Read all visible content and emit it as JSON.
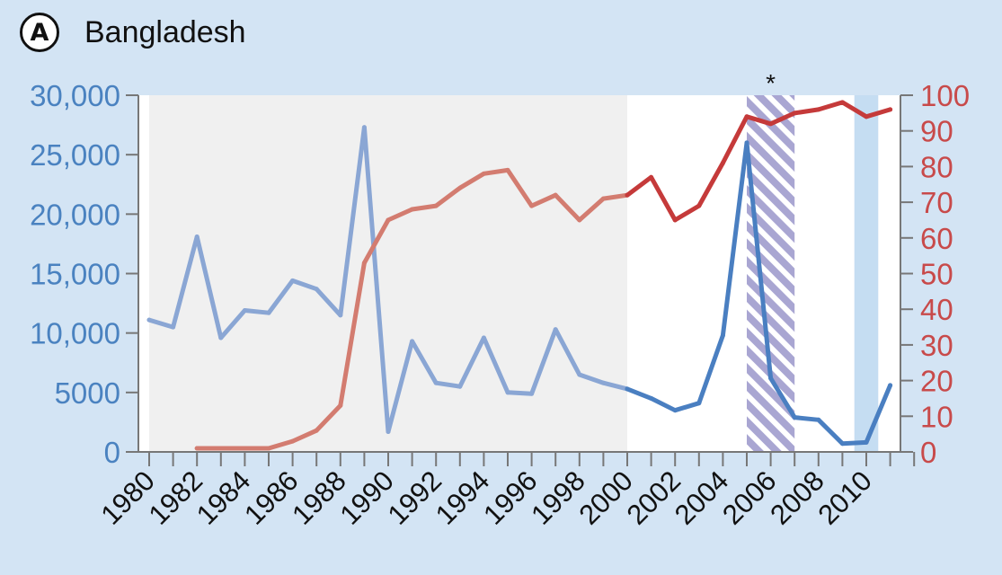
{
  "panel": {
    "badge": "A",
    "title": "Bangladesh"
  },
  "chart_data": {
    "type": "line",
    "title": "Bangladesh",
    "xlabel": "",
    "x_range": [
      1980,
      2011
    ],
    "x_tick_labels": [
      "1980",
      "1982",
      "1984",
      "1986",
      "1988",
      "1990",
      "1992",
      "1994",
      "1996",
      "1998",
      "2000",
      "2002",
      "2004",
      "2006",
      "2008",
      "2010"
    ],
    "left_axis": {
      "range": [
        0,
        30000
      ],
      "tick_labels": [
        "0",
        "5000",
        "10,000",
        "15,000",
        "20,000",
        "25,000",
        "30,000"
      ],
      "color": "#4a82c0"
    },
    "right_axis": {
      "range": [
        0,
        100
      ],
      "tick_labels": [
        "0",
        "10",
        "20",
        "30",
        "40",
        "50",
        "60",
        "70",
        "80",
        "90",
        "100"
      ],
      "color": "#c84a4a"
    },
    "shaded_regions": [
      {
        "kind": "gray-background",
        "from": 1980,
        "to": 2000,
        "color": "#f0f0f0"
      },
      {
        "kind": "hatched",
        "from": 2005,
        "to": 2007,
        "color": "#a9a6d2",
        "annotation": "*"
      },
      {
        "kind": "solid",
        "from": 2009.5,
        "to": 2010.5,
        "color": "#c5ddf2"
      }
    ],
    "series": [
      {
        "axis": "left",
        "color_faded": "#8aa6d4",
        "color": "#4a7fc1",
        "highlight_from": 2000,
        "x": [
          1980,
          1981,
          1982,
          1983,
          1984,
          1985,
          1986,
          1987,
          1988,
          1989,
          1990,
          1991,
          1992,
          1993,
          1994,
          1995,
          1996,
          1997,
          1998,
          1999,
          2000,
          2001,
          2002,
          2003,
          2004,
          2005,
          2006,
          2007,
          2008,
          2009,
          2010,
          2011
        ],
        "values": [
          11100,
          10500,
          18100,
          9600,
          11900,
          11700,
          14400,
          13700,
          11500,
          27300,
          1700,
          9300,
          5800,
          5500,
          9600,
          5000,
          4900,
          10300,
          6500,
          5800,
          5300,
          4500,
          3500,
          4100,
          9800,
          26000,
          6200,
          2900,
          2700,
          700,
          800,
          5600
        ]
      },
      {
        "axis": "right",
        "color_faded": "#d37c70",
        "color": "#c53a3a",
        "highlight_from": 2000,
        "x": [
          1982,
          1983,
          1984,
          1985,
          1986,
          1987,
          1988,
          1989,
          1990,
          1991,
          1992,
          1993,
          1994,
          1995,
          1996,
          1997,
          1998,
          1999,
          2000,
          2001,
          2002,
          2003,
          2004,
          2005,
          2006,
          2007,
          2008,
          2009,
          2010,
          2011
        ],
        "values": [
          1,
          1,
          1,
          1,
          3,
          6,
          13,
          53,
          65,
          68,
          69,
          74,
          78,
          79,
          69,
          72,
          65,
          71,
          72,
          77,
          65,
          69,
          81,
          94,
          92,
          95,
          96,
          98,
          94,
          96
        ]
      }
    ]
  }
}
